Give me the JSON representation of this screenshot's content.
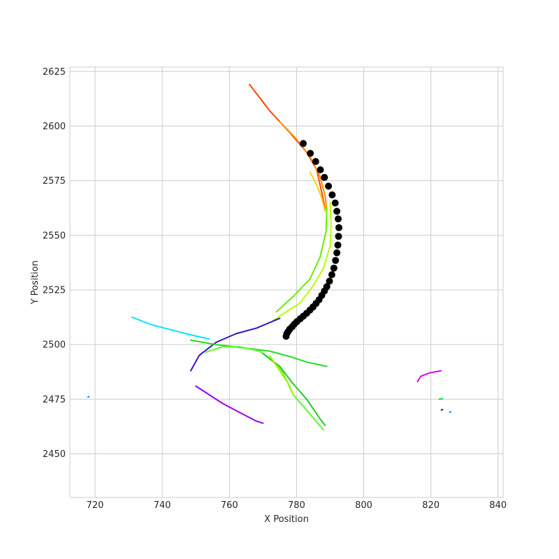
{
  "chart_data": {
    "type": "scatter",
    "title": "",
    "xlabel": "X Position",
    "ylabel": "Y Position",
    "xlim": [
      712.5,
      841.5
    ],
    "ylim": [
      2430,
      2627
    ],
    "xticks": [
      720,
      740,
      760,
      780,
      800,
      820,
      840
    ],
    "yticks": [
      2450,
      2475,
      2500,
      2525,
      2550,
      2575,
      2600,
      2625
    ],
    "grid": true,
    "legend": "none",
    "scatter_series": {
      "color": "#000000",
      "points": [
        [
          782.0,
          2592.0
        ],
        [
          784.1,
          2587.5
        ],
        [
          785.7,
          2583.8
        ],
        [
          787.1,
          2580.0
        ],
        [
          788.3,
          2576.5
        ],
        [
          789.5,
          2572.5
        ],
        [
          790.6,
          2568.5
        ],
        [
          791.5,
          2564.8
        ],
        [
          792.0,
          2561.0
        ],
        [
          792.4,
          2557.5
        ],
        [
          792.6,
          2553.5
        ],
        [
          792.5,
          2549.5
        ],
        [
          792.3,
          2545.5
        ],
        [
          792.0,
          2542.0
        ],
        [
          791.6,
          2538.5
        ],
        [
          791.1,
          2535.0
        ],
        [
          790.5,
          2532.0
        ],
        [
          789.8,
          2529.0
        ],
        [
          789.0,
          2526.5
        ],
        [
          788.3,
          2524.5
        ],
        [
          787.5,
          2522.5
        ],
        [
          786.7,
          2520.5
        ],
        [
          785.8,
          2518.8
        ],
        [
          784.9,
          2517.2
        ],
        [
          784.0,
          2515.8
        ],
        [
          783.0,
          2514.3
        ],
        [
          782.0,
          2513.0
        ],
        [
          781.1,
          2511.8
        ],
        [
          780.1,
          2510.5
        ],
        [
          779.3,
          2509.3
        ],
        [
          778.7,
          2508.2
        ],
        [
          778.0,
          2507.1
        ],
        [
          777.5,
          2506.0
        ],
        [
          777.1,
          2505.0
        ],
        [
          776.9,
          2503.8
        ]
      ]
    },
    "line_series": [
      {
        "color": "#ff4500",
        "points": [
          [
            766,
            2619
          ],
          [
            772,
            2607
          ],
          [
            778,
            2597
          ],
          [
            783,
            2588
          ],
          [
            786,
            2580
          ],
          [
            788,
            2566
          ],
          [
            788.5,
            2562
          ]
        ]
      },
      {
        "color": "#ff8c00",
        "points": [
          [
            775,
            2602
          ],
          [
            780,
            2594
          ],
          [
            784,
            2586
          ],
          [
            787,
            2577
          ],
          [
            788.5,
            2568
          ],
          [
            789,
            2562
          ]
        ]
      },
      {
        "color": "#ffd000",
        "points": [
          [
            784,
            2579
          ],
          [
            786,
            2573
          ],
          [
            787.5,
            2567
          ],
          [
            788.5,
            2561
          ]
        ]
      },
      {
        "color": "#b4ff00",
        "points": [
          [
            790,
            2565
          ],
          [
            790.3,
            2555
          ],
          [
            790,
            2545
          ],
          [
            788,
            2535
          ],
          [
            785,
            2527
          ],
          [
            781,
            2519
          ],
          [
            776,
            2514
          ],
          [
            773,
            2511
          ]
        ]
      },
      {
        "color": "#66ee00",
        "points": [
          [
            789,
            2563
          ],
          [
            788.8,
            2552
          ],
          [
            787,
            2540
          ],
          [
            784,
            2530
          ],
          [
            779,
            2522
          ],
          [
            774,
            2515
          ]
        ]
      },
      {
        "color": "#3311cc",
        "points": [
          [
            775,
            2512
          ],
          [
            768,
            2507.5
          ],
          [
            762,
            2505
          ],
          [
            756,
            2501
          ],
          [
            751,
            2495
          ],
          [
            748.5,
            2488
          ]
        ]
      },
      {
        "color": "#00e5ff",
        "points": [
          [
            731,
            2512.5
          ],
          [
            737,
            2509
          ],
          [
            742,
            2507
          ],
          [
            747,
            2505
          ],
          [
            754,
            2502.5
          ]
        ]
      },
      {
        "color": "#22dd22",
        "points": [
          [
            748.5,
            2502
          ],
          [
            756,
            2500
          ],
          [
            764,
            2498.5
          ],
          [
            772,
            2497
          ],
          [
            778,
            2494.5
          ],
          [
            783,
            2492
          ],
          [
            789,
            2490
          ]
        ]
      },
      {
        "color": "#55ff22",
        "points": [
          [
            753,
            2496.5
          ],
          [
            758,
            2499
          ],
          [
            763,
            2499
          ],
          [
            769,
            2497
          ],
          [
            774,
            2491
          ],
          [
            776,
            2487
          ],
          [
            779,
            2477
          ],
          [
            783,
            2470
          ],
          [
            788,
            2461
          ]
        ]
      },
      {
        "color": "#22cc22",
        "points": [
          [
            770,
            2496
          ],
          [
            775,
            2490
          ],
          [
            779,
            2482
          ],
          [
            783,
            2475
          ],
          [
            787,
            2466
          ],
          [
            788.5,
            2463
          ]
        ]
      },
      {
        "color": "#aaee00",
        "points": [
          [
            772,
            2495
          ],
          [
            775,
            2488
          ],
          [
            778,
            2481
          ],
          [
            779,
            2477
          ]
        ]
      },
      {
        "color": "#9900ee",
        "points": [
          [
            750,
            2481
          ],
          [
            753,
            2478
          ],
          [
            758,
            2473
          ],
          [
            763,
            2469
          ],
          [
            768,
            2465
          ],
          [
            770,
            2464
          ]
        ]
      },
      {
        "color": "#dd00ee",
        "points": [
          [
            816,
            2483
          ],
          [
            817,
            2485.5
          ],
          [
            819.5,
            2487
          ],
          [
            823,
            2488
          ]
        ]
      },
      {
        "color": "#00dd44",
        "points": [
          [
            822.5,
            2475
          ],
          [
            823.5,
            2475.2
          ]
        ]
      },
      {
        "color": "#3300ee",
        "points": [
          [
            823.1,
            2470
          ],
          [
            823.5,
            2470.3
          ]
        ]
      },
      {
        "color": "#0088ff",
        "points": [
          [
            825.6,
            2469
          ],
          [
            825.9,
            2469.2
          ]
        ]
      },
      {
        "color": "#0099ff",
        "points": [
          [
            717.9,
            2476
          ],
          [
            718.2,
            2476.2
          ]
        ]
      }
    ],
    "colors": {
      "grid": "#cccccc",
      "frame": "#cccccc",
      "text": "#262626",
      "background": "#ffffff"
    }
  }
}
